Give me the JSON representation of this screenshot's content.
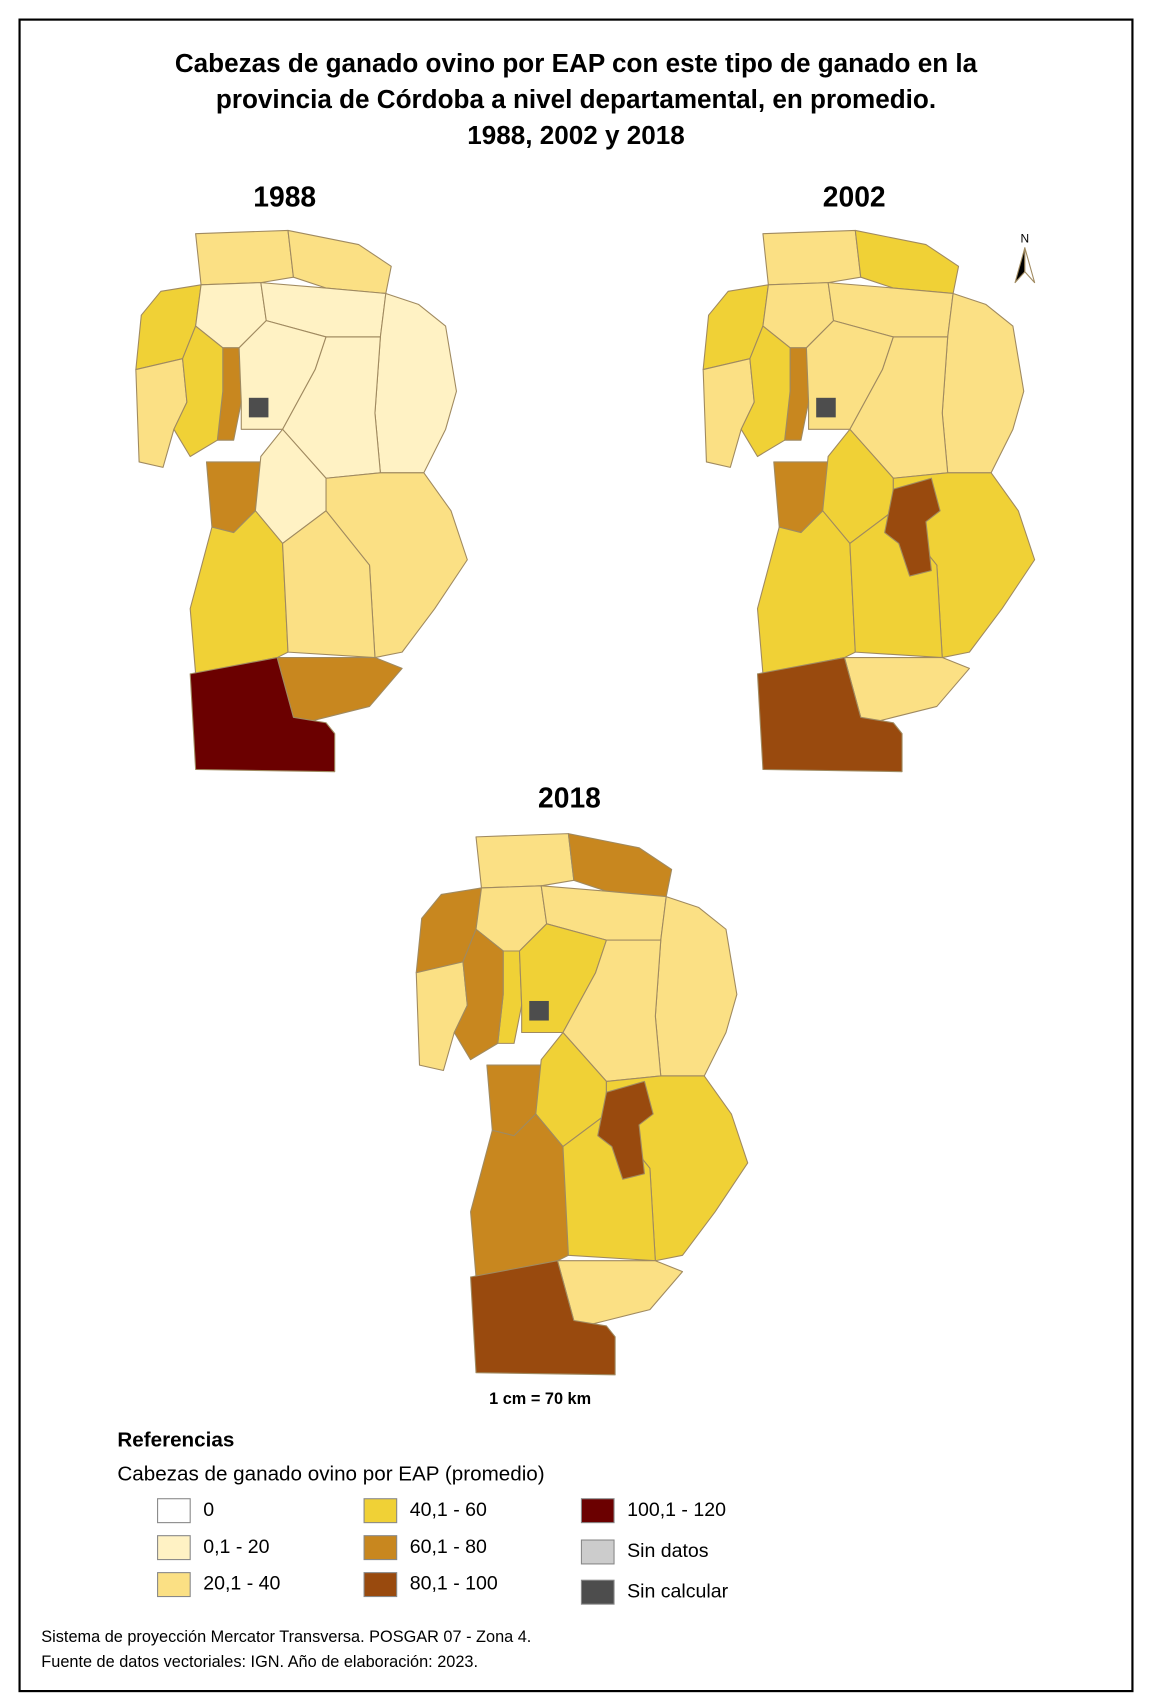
{
  "header": {
    "title": [
      "Cabezas de ganado ovino por EAP con este tipo de ganado en la",
      "provincia de Córdoba a nivel departamental, en promedio.",
      "1988, 2002 y 2018"
    ]
  },
  "maps": [
    {
      "title": "1988"
    },
    {
      "title": "2002"
    },
    {
      "title": "2018"
    }
  ],
  "north_arrow": "N",
  "scale": "1 cm = 70 km",
  "legend": {
    "title": "Referencias",
    "subtitle": "Cabezas de ganado ovino por EAP (promedio)",
    "items": [
      {
        "label": "0",
        "color": "#ffffff"
      },
      {
        "label": "0,1 - 20",
        "color": "#fff2c4"
      },
      {
        "label": "20,1 - 40",
        "color": "#fbe084"
      },
      {
        "label": "40,1 -  60",
        "color": "#f0d136"
      },
      {
        "label": "60,1 - 80",
        "color": "#c8871f"
      },
      {
        "label": "80,1 - 100",
        "color": "#994a0e"
      },
      {
        "label": "100,1 - 120",
        "color": "#6b0000"
      },
      {
        "label": "Sin datos",
        "color": "#cccccc"
      },
      {
        "label": "Sin calcular",
        "color": "#4d4d4d"
      }
    ]
  },
  "footer": [
    "Sistema de proyección Mercator Transversa. POSGAR 07 - Zona 4.",
    "Fuente de datos vectoriales: IGN. Año de elaboración: 2023."
  ]
}
